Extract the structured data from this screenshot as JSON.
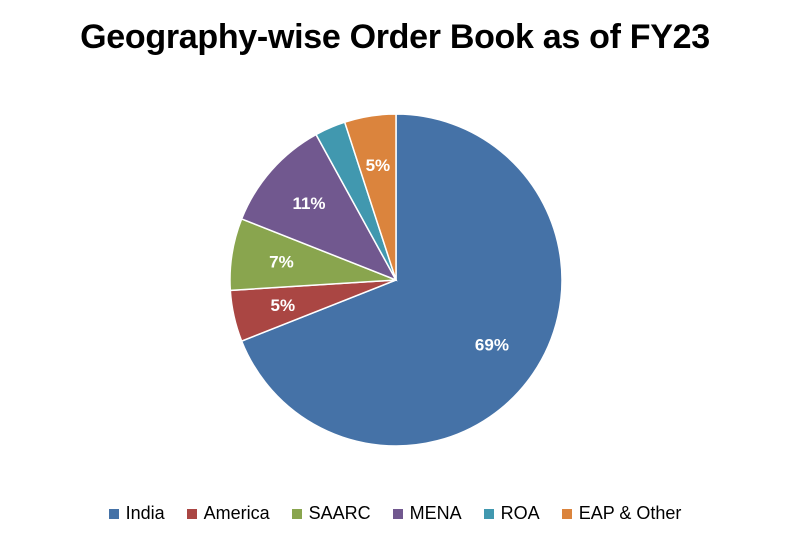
{
  "chart_data": {
    "type": "pie",
    "title": "Geography-wise Order Book as of FY23",
    "slices": [
      {
        "name": "India",
        "value": 69,
        "label": "69%",
        "color": "#4572A7"
      },
      {
        "name": "America",
        "value": 5,
        "label": "5%",
        "color": "#AA4643"
      },
      {
        "name": "SAARC",
        "value": 7,
        "label": "7%",
        "color": "#89A54E"
      },
      {
        "name": "MENA",
        "value": 11,
        "label": "11%",
        "color": "#71588F"
      },
      {
        "name": "ROA",
        "value": 3,
        "label": "",
        "color": "#4198AF"
      },
      {
        "name": "EAP & Other",
        "value": 5,
        "label": "5%",
        "color": "#DB843D"
      }
    ],
    "start_angle_deg": 0,
    "direction": "clockwise",
    "legend_position": "bottom"
  }
}
